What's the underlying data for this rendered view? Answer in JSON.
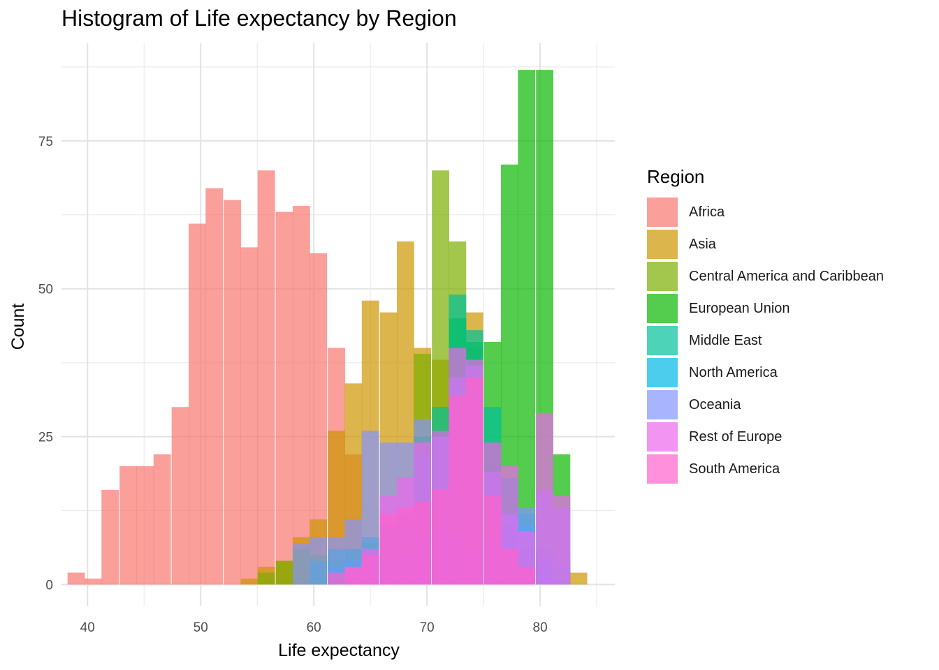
{
  "chart_data": {
    "type": "histogram",
    "title": "Histogram of Life expectancy by Region",
    "xlabel": "Life expectancy",
    "ylabel": "Count",
    "xlim": [
      37.7,
      86.6
    ],
    "ylim": [
      -3.6,
      91.5
    ],
    "x_ticks": [
      40,
      50,
      60,
      70,
      80
    ],
    "y_ticks": [
      0,
      25,
      50,
      75
    ],
    "bin_width": 1.53,
    "grid": true,
    "legend_title": "Region",
    "legend_position": "right",
    "series": [
      {
        "name": "Africa",
        "color": "#F8766D",
        "bins": [
          [
            39.0,
            2
          ],
          [
            40.5,
            1
          ],
          [
            42.0,
            16
          ],
          [
            43.6,
            20
          ],
          [
            45.1,
            20
          ],
          [
            46.6,
            22
          ],
          [
            48.2,
            30
          ],
          [
            49.7,
            61
          ],
          [
            51.2,
            67
          ],
          [
            52.8,
            65
          ],
          [
            54.3,
            57
          ],
          [
            55.8,
            70
          ],
          [
            57.4,
            63
          ],
          [
            58.9,
            64
          ],
          [
            60.4,
            56
          ],
          [
            62.0,
            40
          ],
          [
            63.5,
            22
          ],
          [
            65.0,
            8
          ],
          [
            66.6,
            8
          ],
          [
            68.1,
            5
          ],
          [
            69.6,
            3
          ],
          [
            71.2,
            2
          ],
          [
            72.7,
            1
          ]
        ]
      },
      {
        "name": "Asia",
        "color": "#CD9600",
        "bins": [
          [
            54.3,
            1
          ],
          [
            55.8,
            3
          ],
          [
            57.4,
            4
          ],
          [
            58.9,
            8
          ],
          [
            60.4,
            11
          ],
          [
            62.0,
            26
          ],
          [
            63.5,
            34
          ],
          [
            65.0,
            48
          ],
          [
            66.6,
            46
          ],
          [
            68.1,
            58
          ],
          [
            69.6,
            40
          ],
          [
            71.2,
            38
          ],
          [
            72.7,
            40
          ],
          [
            74.2,
            46
          ],
          [
            75.8,
            24
          ],
          [
            77.3,
            10
          ],
          [
            78.8,
            6
          ],
          [
            80.4,
            5
          ],
          [
            81.9,
            3
          ],
          [
            83.4,
            2
          ]
        ]
      },
      {
        "name": "Central America and Caribbean",
        "color": "#7CAE00",
        "bins": [
          [
            55.8,
            2
          ],
          [
            57.4,
            4
          ],
          [
            58.9,
            6
          ],
          [
            60.4,
            5
          ],
          [
            62.0,
            4
          ],
          [
            63.5,
            6
          ],
          [
            65.0,
            7
          ],
          [
            66.6,
            5
          ],
          [
            68.1,
            8
          ],
          [
            69.6,
            39
          ],
          [
            71.2,
            70
          ],
          [
            72.7,
            58
          ],
          [
            74.2,
            40
          ],
          [
            75.8,
            20
          ],
          [
            77.3,
            8
          ],
          [
            78.8,
            4
          ]
        ]
      },
      {
        "name": "European Union",
        "color": "#0CB702",
        "bins": [
          [
            68.1,
            10
          ],
          [
            69.6,
            25
          ],
          [
            71.2,
            26
          ],
          [
            72.7,
            45
          ],
          [
            74.2,
            41
          ],
          [
            75.8,
            41
          ],
          [
            77.3,
            71
          ],
          [
            78.8,
            87
          ],
          [
            80.4,
            87
          ],
          [
            81.9,
            22
          ]
        ]
      },
      {
        "name": "Middle East",
        "color": "#00C19A",
        "bins": [
          [
            60.4,
            4
          ],
          [
            62.0,
            6
          ],
          [
            63.5,
            6
          ],
          [
            65.0,
            8
          ],
          [
            66.6,
            10
          ],
          [
            68.1,
            12
          ],
          [
            69.6,
            22
          ],
          [
            71.2,
            30
          ],
          [
            72.7,
            49
          ],
          [
            74.2,
            43
          ],
          [
            75.8,
            30
          ],
          [
            77.3,
            18
          ],
          [
            78.8,
            12
          ],
          [
            80.4,
            6
          ],
          [
            81.9,
            3
          ]
        ]
      },
      {
        "name": "North America",
        "color": "#00B8E7",
        "bins": [
          [
            62.0,
            3
          ],
          [
            63.5,
            4
          ],
          [
            65.0,
            5
          ],
          [
            66.6,
            4
          ],
          [
            68.1,
            6
          ],
          [
            69.6,
            8
          ],
          [
            71.2,
            10
          ],
          [
            72.7,
            8
          ],
          [
            74.2,
            6
          ],
          [
            75.8,
            8
          ],
          [
            77.3,
            12
          ],
          [
            78.8,
            10
          ],
          [
            80.4,
            4
          ]
        ]
      },
      {
        "name": "Oceania",
        "color": "#8494FF",
        "bins": [
          [
            58.9,
            7
          ],
          [
            60.4,
            8
          ],
          [
            62.0,
            8
          ],
          [
            63.5,
            11
          ],
          [
            65.0,
            26
          ],
          [
            66.6,
            24
          ],
          [
            68.1,
            24
          ],
          [
            69.6,
            28
          ],
          [
            71.2,
            25
          ],
          [
            72.7,
            35
          ],
          [
            74.2,
            37
          ],
          [
            75.8,
            19
          ],
          [
            77.3,
            12
          ],
          [
            78.8,
            13
          ],
          [
            80.4,
            16
          ],
          [
            81.9,
            13
          ]
        ]
      },
      {
        "name": "Rest of Europe",
        "color": "#ED68ED",
        "bins": [
          [
            63.5,
            3
          ],
          [
            65.0,
            6
          ],
          [
            66.6,
            15
          ],
          [
            68.1,
            18
          ],
          [
            69.6,
            24
          ],
          [
            71.2,
            26
          ],
          [
            72.7,
            40
          ],
          [
            74.2,
            38
          ],
          [
            75.8,
            24
          ],
          [
            77.3,
            20
          ],
          [
            78.8,
            9
          ],
          [
            80.4,
            29
          ],
          [
            81.9,
            15
          ]
        ]
      },
      {
        "name": "South America",
        "color": "#FF61CC",
        "bins": [
          [
            62.0,
            2
          ],
          [
            63.5,
            3
          ],
          [
            65.0,
            5
          ],
          [
            66.6,
            12
          ],
          [
            68.1,
            13
          ],
          [
            69.6,
            14
          ],
          [
            71.2,
            16
          ],
          [
            72.7,
            32
          ],
          [
            74.2,
            35
          ],
          [
            75.8,
            15
          ],
          [
            77.3,
            6
          ],
          [
            78.8,
            3
          ]
        ]
      }
    ]
  }
}
